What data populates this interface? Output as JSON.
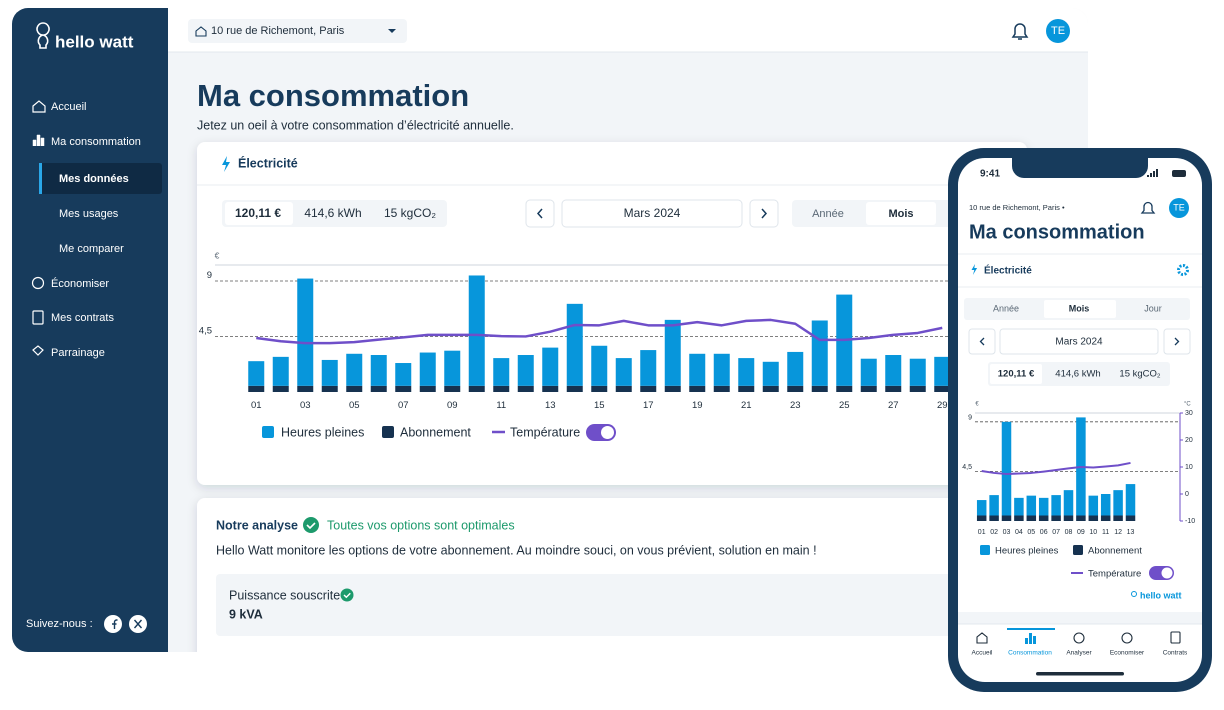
{
  "sidebar": {
    "brand": "hello watt",
    "nav": [
      "Accueil",
      "Ma consommation",
      "Mes données",
      "Mes usages",
      "Me comparer",
      "Économiser",
      "Mes contrats",
      "Parrainage"
    ],
    "follow": "Suivez-nous :"
  },
  "topbar": {
    "address": "10 rue de Richemont, Paris",
    "avatar": "TE"
  },
  "page": {
    "title": "Ma consommation",
    "subtitle": "Jetez un oeil à votre consommation d’électricité annuelle."
  },
  "card": {
    "title": "Électricité",
    "stats": [
      "120,11 €",
      "414,6 kWh",
      "15 kgCO₂"
    ],
    "period": "Mars 2024",
    "tabs": [
      "Année",
      "Mois"
    ]
  },
  "chart": {
    "type": "bar",
    "ylabel": "€",
    "categories": [
      "01",
      null,
      "03",
      null,
      "05",
      null,
      "07",
      null,
      "09",
      null,
      "11",
      null,
      "13",
      null,
      "15",
      null,
      "17",
      null,
      "19",
      null,
      "21",
      null,
      "23",
      null,
      "25",
      null,
      "27",
      null,
      "29"
    ],
    "series": [
      {
        "name": "Heures pleines",
        "type": "bar",
        "color": "#0796db",
        "values": [
          2.0,
          2.35,
          8.7,
          2.1,
          2.6,
          2.5,
          1.85,
          2.7,
          2.85,
          8.95,
          2.25,
          2.5,
          3.1,
          6.65,
          3.25,
          2.25,
          2.9,
          5.35,
          2.6,
          2.6,
          2.25,
          1.95,
          2.75,
          5.3,
          7.4,
          2.2,
          2.5,
          2.2,
          2.35
        ]
      },
      {
        "name": "Abonnement",
        "type": "bar",
        "color": "#163250",
        "values": [
          0.5,
          0.5,
          0.5,
          0.5,
          0.5,
          0.5,
          0.5,
          0.5,
          0.5,
          0.5,
          0.5,
          0.5,
          0.5,
          0.5,
          0.5,
          0.5,
          0.5,
          0.5,
          0.5,
          0.5,
          0.5,
          0.5,
          0.5,
          0.5,
          0.5,
          0.5,
          0.5,
          0.5,
          0.5
        ]
      },
      {
        "name": "Température",
        "type": "line",
        "axis": "y2",
        "color": "#6f4fc9",
        "values": [
          7.0,
          6.0,
          5.4,
          5.4,
          5.7,
          6.5,
          7.2,
          8.0,
          8.0,
          8.0,
          7.6,
          7.5,
          9.0,
          11.1,
          11.0,
          12.4,
          11.0,
          11.0,
          12.0,
          11.0,
          12.4,
          12.7,
          11.5,
          6.4,
          6.4,
          7.0,
          8.0,
          8.6,
          10.2
        ]
      }
    ],
    "ylim": [
      0,
      10.3
    ],
    "yticks": [
      {
        "value": 4.5,
        "label": "4,5"
      },
      9
    ],
    "y2lim": [
      -10,
      30
    ]
  },
  "analysis": {
    "title": "Notre analyse",
    "status": "Toutes vos options sont optimales",
    "text": "Hello Watt monitore les options de votre abonnement. Au moindre souci, on vous prévient, solution en main !",
    "option_label": "Puissance souscrite",
    "option_value": "9 kVA"
  },
  "phone": {
    "time": "9:41",
    "address": "10 rue de Richemont, Paris •",
    "avatar": "TE",
    "title": "Ma consommation",
    "card_title": "Électricité",
    "tabs": [
      "Année",
      "Mois",
      "Jour"
    ],
    "period": "Mars 2024",
    "stats": [
      "120,11 €",
      "414,6 kWh",
      "15 kgCO₂"
    ],
    "chart": {
      "type": "bar",
      "ylabel": "€",
      "y2label": "°C",
      "categories": [
        "01",
        "02",
        "03",
        "04",
        "05",
        "06",
        "07",
        "08",
        "09",
        "10",
        "11",
        "12",
        "13"
      ],
      "series": [
        {
          "name": "Heures pleines",
          "type": "bar",
          "color": "#0796db",
          "values": [
            1.4,
            1.85,
            8.5,
            1.6,
            1.8,
            1.6,
            1.85,
            2.3,
            8.9,
            1.8,
            1.95,
            2.3,
            2.85
          ]
        },
        {
          "name": "Abonnement",
          "type": "bar",
          "color": "#163250",
          "values": [
            0.5,
            0.5,
            0.5,
            0.5,
            0.5,
            0.5,
            0.5,
            0.5,
            0.5,
            0.5,
            0.5,
            0.5,
            0.5
          ]
        },
        {
          "name": "Température",
          "type": "line",
          "axis": "y2",
          "color": "#6f4fc9",
          "values": [
            8.5,
            7.8,
            7.4,
            7.6,
            7.8,
            8.3,
            8.9,
            9.5,
            10.0,
            9.8,
            10.2,
            10.6,
            11.5
          ]
        }
      ],
      "ylim": [
        0,
        9.8
      ],
      "yticks": [
        {
          "value": 4.5,
          "label": "4,5"
        },
        9
      ],
      "y2lim": [
        -10,
        30
      ],
      "y2ticks": [
        -10,
        0,
        10,
        20,
        30
      ]
    },
    "brand": "hello watt",
    "nav": [
      "Accueil",
      "Consommation",
      "Analyser",
      "Economiser",
      "Contrats"
    ]
  }
}
